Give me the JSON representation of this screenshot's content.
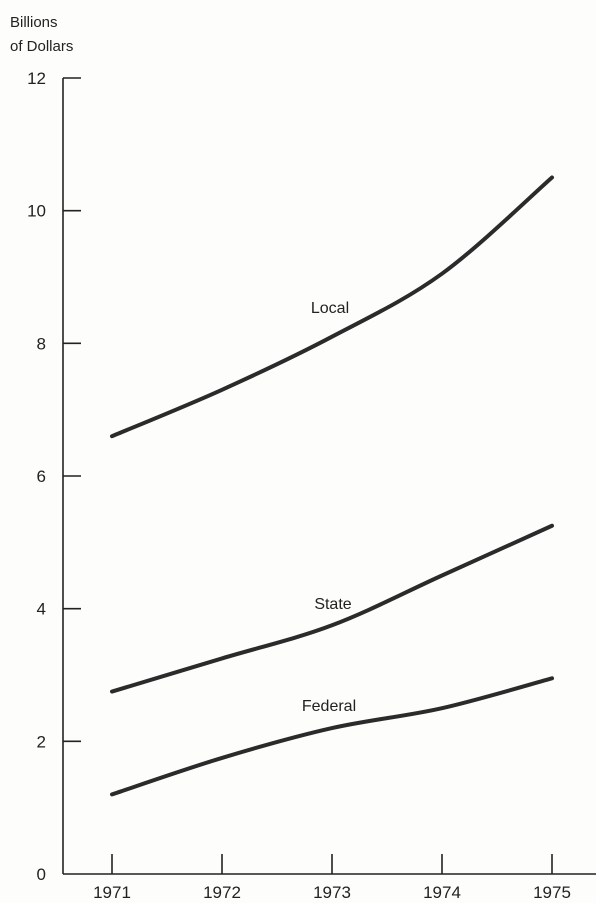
{
  "chart_data": {
    "type": "line",
    "title": "",
    "ylabel_lines": [
      "Billions",
      "of Dollars"
    ],
    "xlabel": "",
    "x": [
      "1971",
      "1972",
      "1973",
      "1974",
      "1975"
    ],
    "yticks": [
      "0",
      "2",
      "4",
      "6",
      "8",
      "10",
      "12"
    ],
    "ylim": [
      0,
      12
    ],
    "grid": false,
    "series": [
      {
        "name": "Local",
        "values": [
          6.6,
          7.3,
          8.1,
          9.05,
          10.5
        ]
      },
      {
        "name": "State",
        "values": [
          2.75,
          3.25,
          3.75,
          4.5,
          5.25
        ]
      },
      {
        "name": "Federal",
        "values": [
          1.2,
          1.75,
          2.2,
          2.5,
          2.95
        ]
      }
    ],
    "line_color": "#2b2b2b"
  }
}
